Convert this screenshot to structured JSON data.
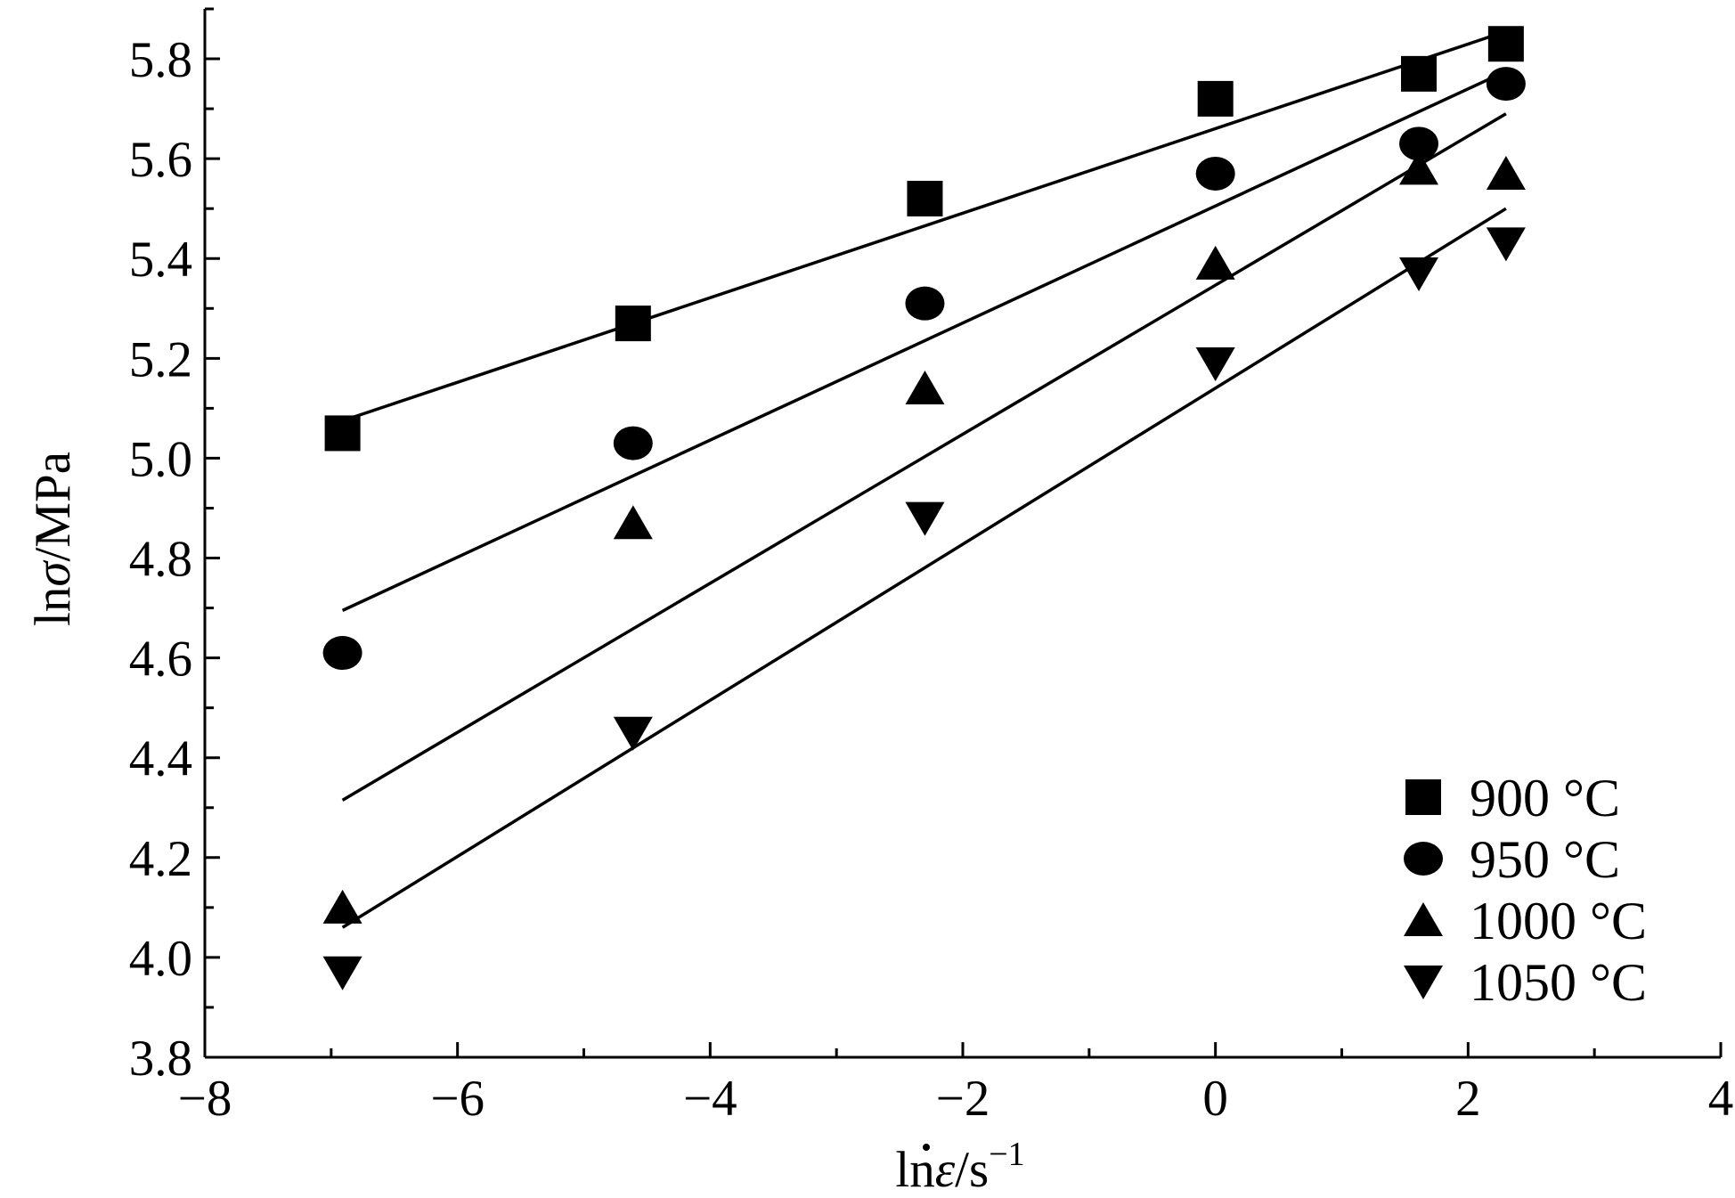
{
  "chart_data": {
    "type": "scatter",
    "xlabel": {
      "prefix": "ln",
      "symbol": "ε",
      "unit": "/s",
      "exponent": "−1"
    },
    "ylabel": {
      "prefix": "ln",
      "symbol": "σ",
      "unit": "/MPa"
    },
    "xlim": [
      -8,
      4
    ],
    "ylim": [
      3.8,
      5.9
    ],
    "x_ticks": [
      -8,
      -6,
      -4,
      -2,
      0,
      2,
      4
    ],
    "x_tick_labels": [
      "−8",
      "−6",
      "−4",
      "−2",
      "0",
      "2",
      "4"
    ],
    "y_ticks": [
      3.8,
      4.0,
      4.2,
      4.4,
      4.6,
      4.8,
      5.0,
      5.2,
      5.4,
      5.6,
      5.8
    ],
    "y_tick_labels": [
      "3.8",
      "4.0",
      "4.2",
      "4.4",
      "4.6",
      "4.8",
      "5.0",
      "5.2",
      "5.4",
      "5.6",
      "5.8"
    ],
    "grid": false,
    "legend_position": "bottom-right",
    "series": [
      {
        "name": "900 °C",
        "marker": "square",
        "x": [
          -6.91,
          -4.61,
          -2.3,
          0,
          1.61,
          2.3
        ],
        "y": [
          5.05,
          5.27,
          5.52,
          5.72,
          5.77,
          5.83
        ],
        "fit": {
          "x": [
            -6.91,
            2.3
          ],
          "y": [
            5.075,
            5.855
          ]
        }
      },
      {
        "name": "950 °C",
        "marker": "circle",
        "x": [
          -6.91,
          -4.61,
          -2.3,
          0,
          1.61,
          2.3
        ],
        "y": [
          4.61,
          5.03,
          5.31,
          5.57,
          5.63,
          5.75
        ],
        "fit": {
          "x": [
            -6.91,
            2.3
          ],
          "y": [
            4.695,
            5.775
          ]
        }
      },
      {
        "name": "1000 °C",
        "marker": "triangle-up",
        "x": [
          -6.91,
          -4.61,
          -2.3,
          0,
          1.61,
          2.3
        ],
        "y": [
          4.1,
          4.87,
          5.14,
          5.39,
          5.58,
          5.57
        ],
        "fit": {
          "x": [
            -6.91,
            2.3
          ],
          "y": [
            4.315,
            5.69
          ]
        }
      },
      {
        "name": "1050 °C",
        "marker": "triangle-down",
        "x": [
          -6.91,
          -4.61,
          -2.3,
          0,
          1.61,
          2.3
        ],
        "y": [
          3.97,
          4.45,
          4.88,
          5.19,
          5.37,
          5.43
        ],
        "fit": {
          "x": [
            -6.91,
            2.3
          ],
          "y": [
            4.06,
            5.5
          ]
        }
      }
    ]
  }
}
